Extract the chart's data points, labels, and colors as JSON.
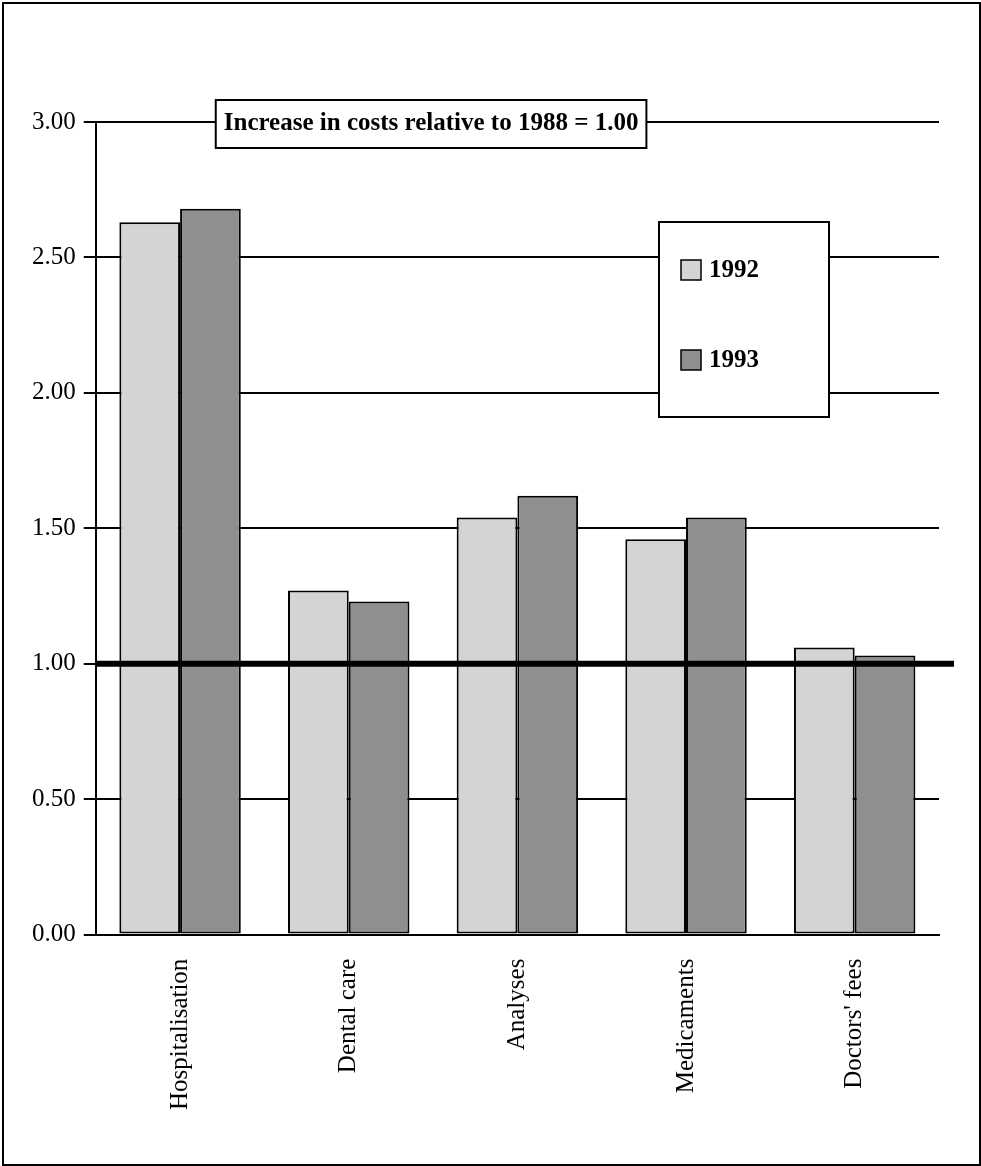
{
  "chart_data": {
    "type": "bar",
    "title": "Increase in costs relative to 1988 = 1.00",
    "categories": [
      "Hospitalisation",
      "Dental care",
      "Analyses",
      "Medicaments",
      "Doctors' fees"
    ],
    "series": [
      {
        "name": "1992",
        "color": "#d4d4d4",
        "values": [
          2.63,
          1.27,
          1.54,
          1.46,
          1.06
        ]
      },
      {
        "name": "1993",
        "color": "#8f8f8f",
        "values": [
          2.68,
          1.23,
          1.62,
          1.54,
          1.03
        ]
      }
    ],
    "ylim": [
      0,
      3
    ],
    "yticks": [
      {
        "value": 0,
        "label": "0.00"
      },
      {
        "value": 0.5,
        "label": "0.50"
      },
      {
        "value": 1,
        "label": "1.00"
      },
      {
        "value": 1.5,
        "label": "1.50"
      },
      {
        "value": 2,
        "label": "2.00"
      },
      {
        "value": 2.5,
        "label": "2.50"
      },
      {
        "value": 3,
        "label": "3.00"
      }
    ],
    "ref_lines": [
      {
        "axis": "y",
        "value": 1,
        "color": "#000000"
      }
    ],
    "grid": "y",
    "legend": "top right"
  }
}
